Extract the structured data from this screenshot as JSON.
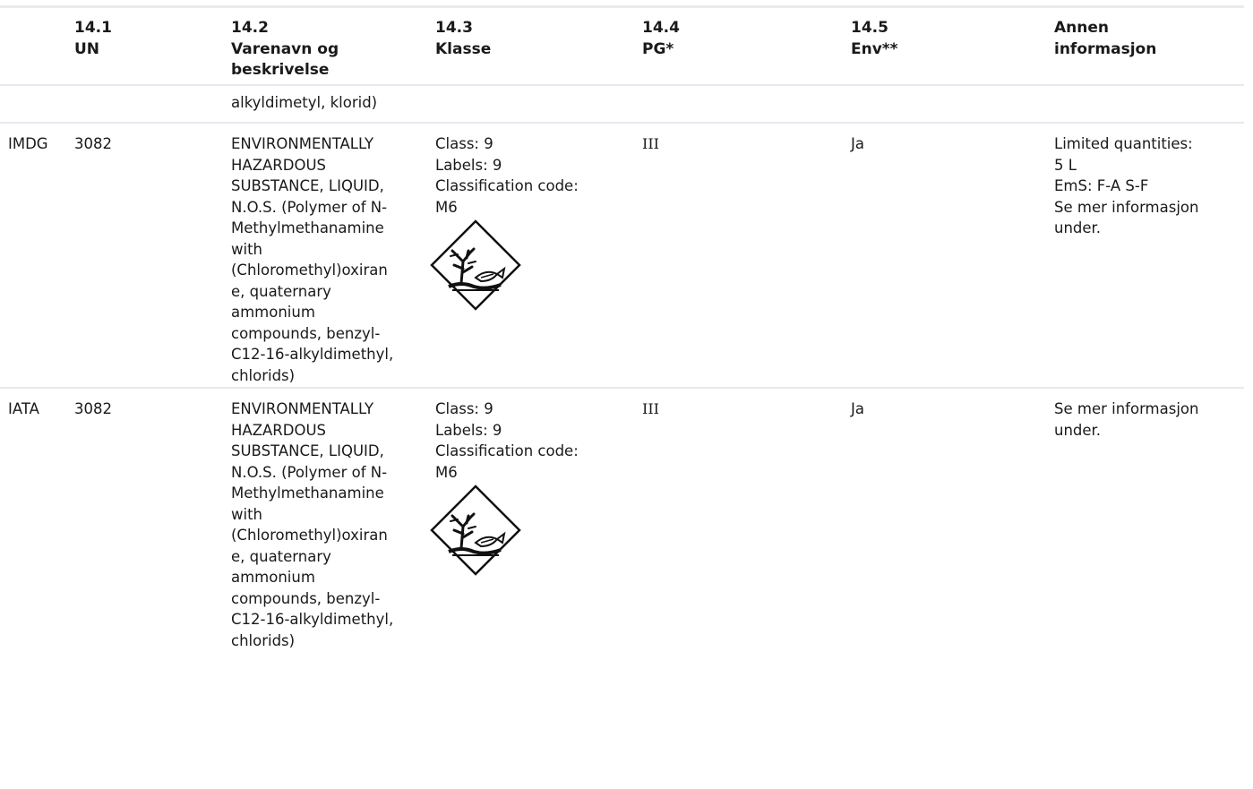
{
  "header": {
    "mode": "",
    "un": [
      "14.1",
      "UN"
    ],
    "name": [
      "14.2",
      "Varenavn og",
      "beskrivelse"
    ],
    "class": [
      "14.3",
      "Klasse"
    ],
    "pg": [
      "14.4",
      "PG*"
    ],
    "env": [
      "14.5",
      "Env**"
    ],
    "other": [
      "Annen",
      "informasjon"
    ]
  },
  "continuation": {
    "name_tail": "alkyldimetyl, klorid)"
  },
  "rows": [
    {
      "mode": "IMDG",
      "un": "3082",
      "name_lines": [
        "ENVIRONMENTALLY",
        "HAZARDOUS",
        "SUBSTANCE, LIQUID,",
        "N.O.S. (Polymer of N-",
        "Methylmethanamine",
        "with",
        "(Chloromethyl)oxiran",
        "e, quaternary",
        "ammonium",
        "compounds, benzyl-",
        "C12-16-alkyldimethyl,",
        "chlorids)"
      ],
      "class_lines": [
        "Class: 9",
        "Labels: 9",
        "Classification code:",
        "M6"
      ],
      "pictogram": "environment-hazard-icon",
      "pg": "III",
      "env": "Ja",
      "other_lines": [
        "Limited quantities:",
        "5 L",
        "EmS: F-A S-F",
        "Se mer informasjon",
        "under."
      ]
    },
    {
      "mode": "IATA",
      "un": "3082",
      "name_lines": [
        "ENVIRONMENTALLY",
        "HAZARDOUS",
        "SUBSTANCE, LIQUID,",
        "N.O.S. (Polymer of N-",
        "Methylmethanamine",
        "with",
        "(Chloromethyl)oxiran",
        "e, quaternary",
        "ammonium",
        "compounds, benzyl-",
        "C12-16-alkyldimethyl,",
        "chlorids)"
      ],
      "class_lines": [
        "Class: 9",
        "Labels: 9",
        "Classification code:",
        "M6"
      ],
      "pictogram": "environment-hazard-icon",
      "pg": "III",
      "env": "Ja",
      "other_lines": [
        "Se mer informasjon",
        "under."
      ]
    }
  ],
  "colors": {
    "rule": "#e6eaf0",
    "text": "#1a1a1a"
  }
}
